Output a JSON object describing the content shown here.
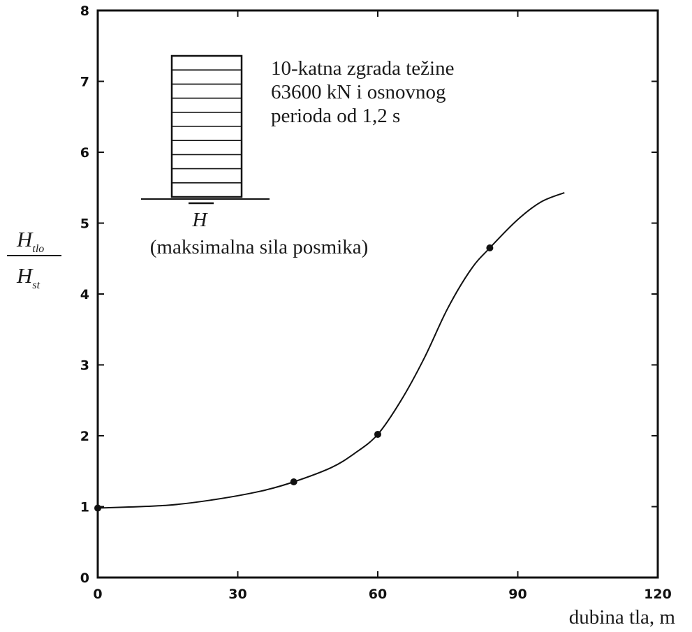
{
  "chart_data": {
    "type": "line",
    "title": "",
    "xlabel": "dubina tla, m",
    "ylabel": {
      "numerator": "H",
      "numerator_sub": "tlo",
      "denominator": "H",
      "denominator_sub": "st"
    },
    "xlim": [
      0,
      120
    ],
    "ylim": [
      0,
      8
    ],
    "x_ticks": [
      0,
      30,
      60,
      90,
      120
    ],
    "x_tick_labels": [
      "0",
      "30",
      "60",
      "90",
      "120"
    ],
    "y_ticks": [
      0,
      1,
      2,
      3,
      4,
      5,
      6,
      7,
      8
    ],
    "y_tick_labels": [
      "0",
      "1",
      "2",
      "3",
      "4",
      "5",
      "6",
      "7",
      "8"
    ],
    "grid": false,
    "curve": {
      "x": [
        0,
        15,
        25,
        35,
        42,
        50,
        55,
        60,
        65,
        70,
        75,
        80,
        84,
        90,
        95,
        100
      ],
      "y": [
        0.98,
        1.02,
        1.1,
        1.22,
        1.35,
        1.55,
        1.75,
        2.02,
        2.5,
        3.1,
        3.8,
        4.35,
        4.65,
        5.05,
        5.3,
        5.43
      ]
    },
    "markers": {
      "x": [
        0,
        42,
        60,
        84
      ],
      "y": [
        0.98,
        1.35,
        2.02,
        4.65
      ]
    },
    "annotation": {
      "lines": [
        "10-katna zgrada težine",
        "63600 kN i osnovnog",
        "perioda od 1,2 s"
      ],
      "force_symbol": "H",
      "force_caption": "(maksimalna sila posmika)",
      "floor_count": 10
    },
    "colors": {
      "ink": "#111111"
    }
  }
}
